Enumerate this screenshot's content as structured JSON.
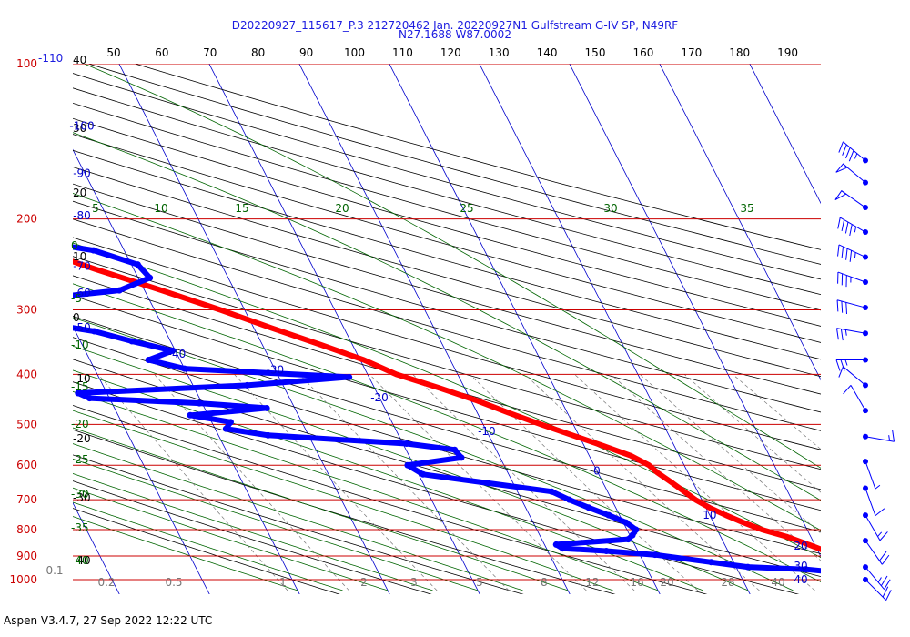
{
  "header": {
    "title_line1": "D20220927_115617_P.3 212720462 Jan. 20220927N1 Gulfstream G-IV SP, N49RF",
    "title_line2": "N27.1688 W87.0002"
  },
  "footer": {
    "text": "Aspen V3.4.7, 27 Sep 2022  12:22 UTC"
  },
  "colors": {
    "temperature": "#ff0000",
    "dewpoint": "#0000ff",
    "isobar": "#cc0000",
    "isotherm": "#0000cc",
    "dry_adiabat": "#000000",
    "moist_adiabat": "#006400",
    "mixing_ratio": "#777777",
    "title": "#1c1ce0"
  },
  "chart_data": {
    "type": "skew-t",
    "title": "D20220927_115617_P.3 212720462 Jan. 20220927N1 Gulfstream G-IV SP, N49RF",
    "subtitle": "N27.1688 W87.0002",
    "pressure_levels_hPa": [
      100,
      200,
      300,
      400,
      500,
      600,
      700,
      800,
      900,
      1000
    ],
    "pressure_labels": [
      "100",
      "200",
      "300",
      "400",
      "500",
      "600",
      "700",
      "800",
      "900",
      "1000"
    ],
    "pressure_prefix": "-110",
    "top_axis_labels": [
      "50",
      "60",
      "70",
      "80",
      "90",
      "100",
      "110",
      "120",
      "130",
      "140",
      "150",
      "160",
      "170",
      "180",
      "190"
    ],
    "left_axis_labels": [
      "40",
      "30",
      "20",
      "10",
      "0",
      "-10",
      "-20",
      "-30",
      "-40"
    ],
    "isotherm_labels": [
      {
        "v": -100,
        "p": 132
      },
      {
        "v": -90,
        "p": 163
      },
      {
        "v": -80,
        "p": 197
      },
      {
        "v": -70,
        "p": 247
      },
      {
        "v": -60,
        "p": 278
      },
      {
        "v": -50,
        "p": 325
      },
      {
        "v": -40,
        "p": 365
      },
      {
        "v": -30,
        "p": 392
      },
      {
        "v": -20,
        "p": 444
      },
      {
        "v": -10,
        "p": 516
      },
      {
        "v": 0,
        "p": 615
      },
      {
        "v": 10,
        "p": 750
      },
      {
        "v": 20,
        "p": 860
      },
      {
        "v": 30,
        "p": 940
      },
      {
        "v": 40,
        "p": 1000
      }
    ],
    "moist_adiabat_labels": [
      "5",
      "10",
      "15",
      "20",
      "25",
      "30",
      "35"
    ],
    "theta_e_left_labels": [
      "0",
      "-5",
      "-10",
      "-15",
      "-20",
      "-25",
      "-30",
      "-35",
      "-40"
    ],
    "mixing_ratio_labels": [
      "0.1",
      "0.2",
      "0.5",
      "1",
      "2",
      "3",
      "5",
      "8",
      "12",
      "16",
      "20"
    ],
    "temperature_profile": [
      {
        "p": 1000,
        "t": 28.5
      },
      {
        "p": 975,
        "t": 26.7
      },
      {
        "p": 950,
        "t": 24.8
      },
      {
        "p": 925,
        "t": 23.2
      },
      {
        "p": 900,
        "t": 21.4
      },
      {
        "p": 875,
        "t": 20.5
      },
      {
        "p": 850,
        "t": 19.0
      },
      {
        "p": 825,
        "t": 17.3
      },
      {
        "p": 800,
        "t": 15.0
      },
      {
        "p": 775,
        "t": 13.3
      },
      {
        "p": 750,
        "t": 11.8
      },
      {
        "p": 725,
        "t": 10.4
      },
      {
        "p": 700,
        "t": 9.3
      },
      {
        "p": 650,
        "t": 7.7
      },
      {
        "p": 620,
        "t": 6.6
      },
      {
        "p": 600,
        "t": 6.1
      },
      {
        "p": 575,
        "t": 4.6
      },
      {
        "p": 550,
        "t": 2.1
      },
      {
        "p": 525,
        "t": -0.7
      },
      {
        "p": 500,
        "t": -3.6
      },
      {
        "p": 475,
        "t": -6.5
      },
      {
        "p": 450,
        "t": -9.3
      },
      {
        "p": 425,
        "t": -12.8
      },
      {
        "p": 400,
        "t": -16.8
      },
      {
        "p": 375,
        "t": -19.6
      },
      {
        "p": 350,
        "t": -23.6
      },
      {
        "p": 325,
        "t": -28.1
      },
      {
        "p": 300,
        "t": -32.7
      },
      {
        "p": 275,
        "t": -38.1
      },
      {
        "p": 250,
        "t": -44.3
      },
      {
        "p": 225,
        "t": -50.7
      },
      {
        "p": 200,
        "t": -56.3
      },
      {
        "p": 175,
        "t": -60.8
      },
      {
        "p": 160,
        "t": -63.4
      },
      {
        "p": 155,
        "t": -64.5
      }
    ],
    "dewpoint_profile": [
      {
        "p": 1000,
        "td": 24.2
      },
      {
        "p": 990,
        "td": 22.9
      },
      {
        "p": 975,
        "td": 22.7
      },
      {
        "p": 955,
        "td": 17.6
      },
      {
        "p": 945,
        "td": 11.3
      },
      {
        "p": 925,
        "td": 7.5
      },
      {
        "p": 895,
        "td": 1.7
      },
      {
        "p": 880,
        "td": -3.5
      },
      {
        "p": 870,
        "td": -8.2
      },
      {
        "p": 855,
        "td": -8.7
      },
      {
        "p": 835,
        "td": -0.4
      },
      {
        "p": 820,
        "td": 0.3
      },
      {
        "p": 800,
        "td": 1.0
      },
      {
        "p": 775,
        "td": 0.3
      },
      {
        "p": 750,
        "td": -1.2
      },
      {
        "p": 725,
        "td": -3.0
      },
      {
        "p": 700,
        "td": -4.7
      },
      {
        "p": 675,
        "td": -6.2
      },
      {
        "p": 650,
        "td": -12.8
      },
      {
        "p": 625,
        "td": -19.5
      },
      {
        "p": 600,
        "td": -20.7
      },
      {
        "p": 580,
        "td": -14.3
      },
      {
        "p": 560,
        "td": -14.6
      },
      {
        "p": 545,
        "td": -19.6
      },
      {
        "p": 525,
        "td": -34.5
      },
      {
        "p": 510,
        "td": -38.8
      },
      {
        "p": 495,
        "td": -37.9
      },
      {
        "p": 480,
        "td": -42.0
      },
      {
        "p": 465,
        "td": -33.1
      },
      {
        "p": 455,
        "td": -40.3
      },
      {
        "p": 445,
        "td": -52.2
      },
      {
        "p": 435,
        "td": -53.2
      },
      {
        "p": 420,
        "td": -34.0
      },
      {
        "p": 405,
        "td": -22.2
      },
      {
        "p": 390,
        "td": -40.0
      },
      {
        "p": 375,
        "td": -43.5
      },
      {
        "p": 360,
        "td": -40.3
      },
      {
        "p": 345,
        "td": -44.3
      },
      {
        "p": 330,
        "td": -47.9
      },
      {
        "p": 315,
        "td": -54.7
      },
      {
        "p": 300,
        "td": -58.4
      },
      {
        "p": 290,
        "td": -56.1
      },
      {
        "p": 275,
        "td": -42.8
      },
      {
        "p": 260,
        "td": -38.7
      },
      {
        "p": 245,
        "td": -39.3
      },
      {
        "p": 230,
        "td": -43.4
      },
      {
        "p": 215,
        "td": -53.2
      },
      {
        "p": 200,
        "td": -60.2
      },
      {
        "p": 195,
        "td": -62.9
      }
    ],
    "wind_barbs": [
      {
        "p": 154,
        "dir": 310,
        "spd": 45
      },
      {
        "p": 170,
        "dir": 310,
        "spd": 50
      },
      {
        "p": 190,
        "dir": 305,
        "spd": 50
      },
      {
        "p": 212,
        "dir": 300,
        "spd": 45
      },
      {
        "p": 237,
        "dir": 295,
        "spd": 45
      },
      {
        "p": 265,
        "dir": 290,
        "spd": 35
      },
      {
        "p": 297,
        "dir": 285,
        "spd": 30
      },
      {
        "p": 333,
        "dir": 280,
        "spd": 25
      },
      {
        "p": 375,
        "dir": 270,
        "spd": 25
      },
      {
        "p": 420,
        "dir": 310,
        "spd": 10
      },
      {
        "p": 470,
        "dir": 330,
        "spd": 10
      },
      {
        "p": 528,
        "dir": 100,
        "spd": 15
      },
      {
        "p": 590,
        "dir": 160,
        "spd": 5
      },
      {
        "p": 665,
        "dir": 160,
        "spd": 10
      },
      {
        "p": 750,
        "dir": 150,
        "spd": 15
      },
      {
        "p": 840,
        "dir": 145,
        "spd": 20
      },
      {
        "p": 945,
        "dir": 140,
        "spd": 25
      },
      {
        "p": 1000,
        "dir": 135,
        "spd": 20
      }
    ]
  }
}
